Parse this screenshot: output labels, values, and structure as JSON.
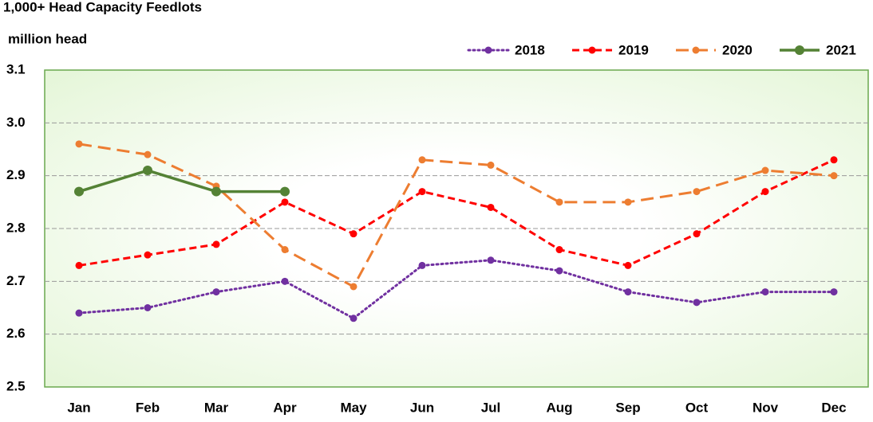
{
  "chart_data": {
    "type": "line",
    "title": "1,000+ Head Capacity Feedlots",
    "y_label": "million head",
    "categories": [
      "Jan",
      "Feb",
      "Mar",
      "Apr",
      "May",
      "Jun",
      "Jul",
      "Aug",
      "Sep",
      "Oct",
      "Nov",
      "Dec"
    ],
    "series": [
      {
        "name": "2018",
        "color": "#7030a0",
        "line_style": "dotted",
        "values": [
          2.64,
          2.65,
          2.68,
          2.7,
          2.63,
          2.73,
          2.74,
          2.72,
          2.68,
          2.66,
          2.68,
          2.68
        ]
      },
      {
        "name": "2019",
        "color": "#ff0000",
        "line_style": "dashed",
        "values": [
          2.73,
          2.75,
          2.77,
          2.85,
          2.79,
          2.87,
          2.84,
          2.76,
          2.73,
          2.79,
          2.87,
          2.93
        ]
      },
      {
        "name": "2020",
        "color": "#ed7d31",
        "line_style": "long-dashed",
        "values": [
          2.96,
          2.94,
          2.88,
          2.76,
          2.69,
          2.93,
          2.92,
          2.85,
          2.85,
          2.87,
          2.91,
          2.9
        ]
      },
      {
        "name": "2021",
        "color": "#548235",
        "line_style": "solid",
        "values": [
          2.87,
          2.91,
          2.87,
          2.87,
          null,
          null,
          null,
          null,
          null,
          null,
          null,
          null
        ]
      }
    ],
    "ylim": [
      2.5,
      3.1
    ],
    "yticks": [
      2.5,
      2.6,
      2.7,
      2.8,
      2.9,
      {
        "value": 3,
        "label": "3.0"
      },
      3.1
    ],
    "grid": true,
    "legend": "top-right"
  }
}
